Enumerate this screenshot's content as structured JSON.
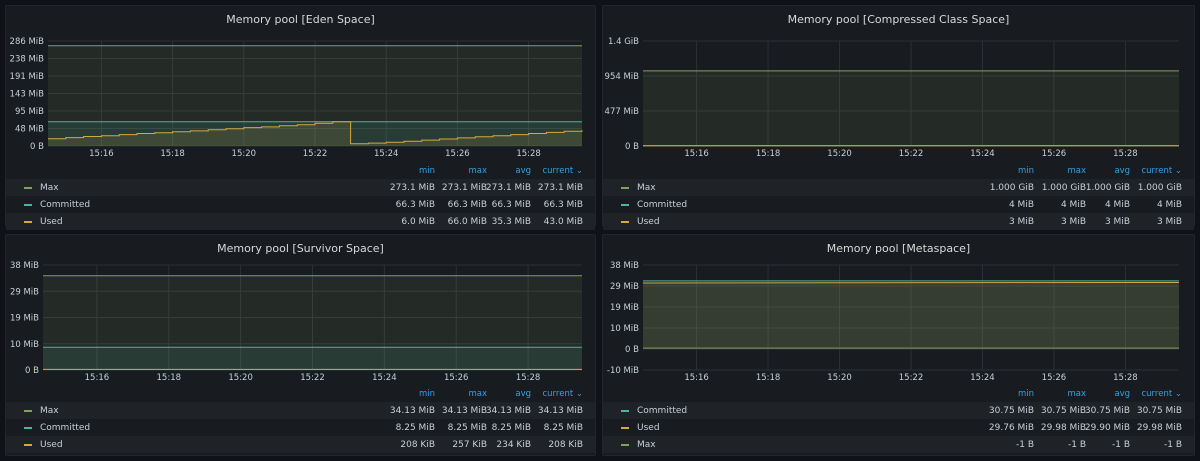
{
  "panels": [
    {
      "title": "Memory pool [Eden Space]",
      "y_ticks": [
        "0 B",
        "48 MiB",
        "95 MiB",
        "143 MiB",
        "191 MiB",
        "238 MiB",
        "286 MiB"
      ],
      "x_ticks": [
        "15:16",
        "15:18",
        "15:20",
        "15:22",
        "15:24",
        "15:26",
        "15:28"
      ],
      "legend_headers": [
        "min",
        "max",
        "avg",
        "current"
      ],
      "legend": [
        {
          "name": "Max",
          "color": "#7ea35b",
          "values": [
            "273.1 MiB",
            "273.1 MiB",
            "273.1 MiB",
            "273.1 MiB"
          ]
        },
        {
          "name": "Committed",
          "color": "#4fb3a1",
          "values": [
            "66.3 MiB",
            "66.3 MiB",
            "66.3 MiB",
            "66.3 MiB"
          ]
        },
        {
          "name": "Used",
          "color": "#d6a940",
          "values": [
            "6.0 MiB",
            "66.0 MiB",
            "35.3 MiB",
            "43.0 MiB"
          ]
        }
      ]
    },
    {
      "title": "Memory pool [Compressed Class Space]",
      "y_ticks": [
        "0 B",
        "477 MiB",
        "954 MiB",
        "1.4 GiB"
      ],
      "x_ticks": [
        "15:16",
        "15:18",
        "15:20",
        "15:22",
        "15:24",
        "15:26",
        "15:28"
      ],
      "legend_headers": [
        "min",
        "max",
        "avg",
        "current"
      ],
      "legend": [
        {
          "name": "Max",
          "color": "#7ea35b",
          "values": [
            "1.000 GiB",
            "1.000 GiB",
            "1.000 GiB",
            "1.000 GiB"
          ]
        },
        {
          "name": "Committed",
          "color": "#4fb3a1",
          "values": [
            "4 MiB",
            "4 MiB",
            "4 MiB",
            "4 MiB"
          ]
        },
        {
          "name": "Used",
          "color": "#d6a940",
          "values": [
            "3 MiB",
            "3 MiB",
            "3 MiB",
            "3 MiB"
          ]
        }
      ]
    },
    {
      "title": "Memory pool [Survivor Space]",
      "y_ticks": [
        "0 B",
        "10 MiB",
        "19 MiB",
        "29 MiB",
        "38 MiB"
      ],
      "x_ticks": [
        "15:16",
        "15:18",
        "15:20",
        "15:22",
        "15:24",
        "15:26",
        "15:28"
      ],
      "legend_headers": [
        "min",
        "max",
        "avg",
        "current"
      ],
      "legend": [
        {
          "name": "Max",
          "color": "#7ea35b",
          "values": [
            "34.13 MiB",
            "34.13 MiB",
            "34.13 MiB",
            "34.13 MiB"
          ]
        },
        {
          "name": "Committed",
          "color": "#4fb3a1",
          "values": [
            "8.25 MiB",
            "8.25 MiB",
            "8.25 MiB",
            "8.25 MiB"
          ]
        },
        {
          "name": "Used",
          "color": "#d6a940",
          "values": [
            "208 KiB",
            "257 KiB",
            "234 KiB",
            "208 KiB"
          ]
        }
      ]
    },
    {
      "title": "Memory pool [Metaspace]",
      "y_ticks": [
        "-10 MiB",
        "0 B",
        "10 MiB",
        "19 MiB",
        "29 MiB",
        "38 MiB"
      ],
      "x_ticks": [
        "15:16",
        "15:18",
        "15:20",
        "15:22",
        "15:24",
        "15:26",
        "15:28"
      ],
      "legend_headers": [
        "min",
        "max",
        "avg",
        "current"
      ],
      "legend": [
        {
          "name": "Committed",
          "color": "#4fb3a1",
          "values": [
            "30.75 MiB",
            "30.75 MiB",
            "30.75 MiB",
            "30.75 MiB"
          ]
        },
        {
          "name": "Used",
          "color": "#d6a940",
          "values": [
            "29.76 MiB",
            "29.98 MiB",
            "29.90 MiB",
            "29.98 MiB"
          ]
        },
        {
          "name": "Max",
          "color": "#7ea35b",
          "values": [
            "-1 B",
            "-1 B",
            "-1 B",
            "-1 B"
          ]
        }
      ]
    }
  ],
  "chart_data": [
    {
      "type": "line",
      "title": "Memory pool [Eden Space]",
      "x": [
        "15:14:30",
        "15:15:00",
        "15:15:30",
        "15:16:00",
        "15:16:30",
        "15:17:00",
        "15:17:30",
        "15:18:00",
        "15:18:30",
        "15:19:00",
        "15:19:30",
        "15:20:00",
        "15:20:30",
        "15:21:00",
        "15:21:30",
        "15:22:00",
        "15:22:30",
        "15:23:00",
        "15:23:30",
        "15:24:00",
        "15:24:30",
        "15:25:00",
        "15:25:30",
        "15:26:00",
        "15:26:30",
        "15:27:00",
        "15:27:30",
        "15:28:00",
        "15:28:30",
        "15:29:00",
        "15:29:30"
      ],
      "series": [
        {
          "name": "Max",
          "values": [
            273.1,
            273.1,
            273.1,
            273.1,
            273.1,
            273.1,
            273.1,
            273.1,
            273.1,
            273.1,
            273.1,
            273.1,
            273.1,
            273.1,
            273.1,
            273.1,
            273.1,
            273.1,
            273.1,
            273.1,
            273.1,
            273.1,
            273.1,
            273.1,
            273.1,
            273.1,
            273.1,
            273.1,
            273.1,
            273.1,
            273.1
          ]
        },
        {
          "name": "Committed",
          "values": [
            66.3,
            66.3,
            66.3,
            66.3,
            66.3,
            66.3,
            66.3,
            66.3,
            66.3,
            66.3,
            66.3,
            66.3,
            66.3,
            66.3,
            66.3,
            66.3,
            66.3,
            66.3,
            66.3,
            66.3,
            66.3,
            66.3,
            66.3,
            66.3,
            66.3,
            66.3,
            66.3,
            66.3,
            66.3,
            66.3,
            66.3
          ]
        },
        {
          "name": "Used",
          "values": [
            20,
            23,
            26,
            28,
            31,
            34,
            36,
            39,
            41,
            44,
            47,
            50,
            52,
            55,
            58,
            62,
            66,
            6,
            8,
            10,
            13,
            16,
            19,
            22,
            25,
            28,
            31,
            34,
            37,
            40,
            43
          ]
        }
      ],
      "ylim": [
        0,
        286
      ],
      "ylabel": "",
      "xlabel": ""
    },
    {
      "type": "line",
      "title": "Memory pool [Compressed Class Space]",
      "x": [
        "15:14:30",
        "15:29:30"
      ],
      "series": [
        {
          "name": "Max",
          "values": [
            1024,
            1024
          ]
        },
        {
          "name": "Committed",
          "values": [
            4,
            4
          ]
        },
        {
          "name": "Used",
          "values": [
            3,
            3
          ]
        }
      ],
      "ylim": [
        0,
        1431
      ],
      "ylabel": "",
      "xlabel": ""
    },
    {
      "type": "line",
      "title": "Memory pool [Survivor Space]",
      "x": [
        "15:14:30",
        "15:29:30"
      ],
      "series": [
        {
          "name": "Max",
          "values": [
            34.13,
            34.13
          ]
        },
        {
          "name": "Committed",
          "values": [
            8.25,
            8.25
          ]
        },
        {
          "name": "Used",
          "values": [
            0.2,
            0.2
          ]
        }
      ],
      "ylim": [
        0,
        38
      ],
      "ylabel": "",
      "xlabel": ""
    },
    {
      "type": "line",
      "title": "Memory pool [Metaspace]",
      "x": [
        "15:14:30",
        "15:29:30"
      ],
      "series": [
        {
          "name": "Committed",
          "values": [
            30.75,
            30.75
          ]
        },
        {
          "name": "Used",
          "values": [
            29.76,
            29.98
          ]
        },
        {
          "name": "Max",
          "values": [
            0,
            0
          ]
        }
      ],
      "ylim": [
        -10,
        38
      ],
      "ylabel": "",
      "xlabel": ""
    }
  ]
}
